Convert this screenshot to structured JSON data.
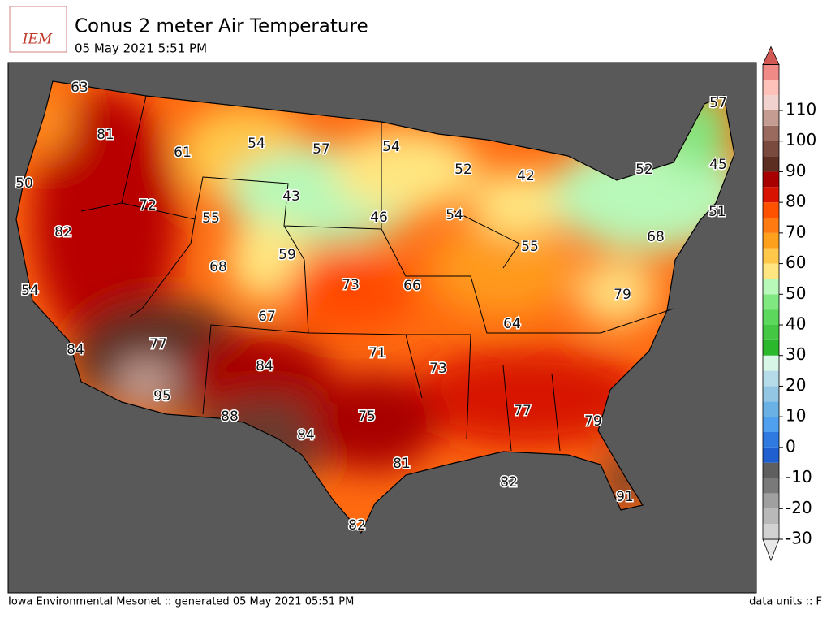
{
  "header": {
    "logo": "IEM",
    "title": "Conus 2 meter Air Temperature",
    "subtitle": "05 May 2021 5:51 PM"
  },
  "map": {
    "stations": [
      63,
      81,
      50,
      82,
      54,
      84,
      72,
      61,
      54,
      57,
      54,
      52,
      42,
      52,
      45,
      51,
      43,
      55,
      46,
      54,
      57,
      59,
      68,
      73,
      66,
      55,
      68,
      67,
      64,
      79,
      77,
      84,
      71,
      73,
      95,
      88,
      84,
      75,
      81,
      77,
      79,
      82,
      91,
      82
    ]
  },
  "colorbar": {
    "ticks": [
      -30,
      -20,
      -10,
      0,
      10,
      20,
      30,
      40,
      50,
      60,
      70,
      80,
      90,
      100,
      110
    ],
    "colors": [
      "#e8e8e8",
      "#d2d2d2",
      "#b9b9b9",
      "#a0a0a0",
      "#7a7a7a",
      "#5f5f5f",
      "#1f5fd0",
      "#2f7ae0",
      "#4fa0ee",
      "#6ab2e6",
      "#92c6e2",
      "#b6dcea",
      "#d8f6e6",
      "#2cb82c",
      "#44c844",
      "#5cd85c",
      "#80e880",
      "#b8f8b8",
      "#ffe680",
      "#ffc84a",
      "#ffa01c",
      "#ff7a10",
      "#ff5200",
      "#d81400",
      "#a80000",
      "#5c2e22",
      "#7a4a3e",
      "#9a6a5e",
      "#c49c92",
      "#f2d2ce",
      "#ffc2ba",
      "#ef8a86",
      "#d25a56"
    ]
  },
  "footer": {
    "left": "Iowa Environmental Mesonet :: generated 05 May 2021 05:51 PM",
    "right": "data units :: F"
  }
}
